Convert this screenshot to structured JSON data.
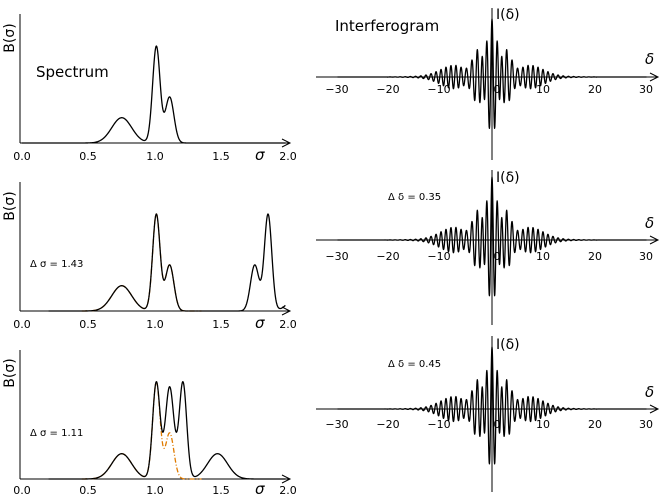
{
  "colors": {
    "curve": "#000000",
    "original_spectrum": "#e07b00"
  },
  "spectrum_panels": [
    {
      "ylabel": "B(σ)",
      "title": "Spectrum",
      "annotation": "",
      "xlabel": "σ",
      "ticks": [
        "0.0",
        "0.5",
        "1.0",
        "1.5",
        "2.0"
      ],
      "xlim": [
        0,
        2
      ],
      "sampling_interval": null
    },
    {
      "ylabel": "B(σ)",
      "title": "",
      "annotation": "Δ σ = 1.43",
      "xlabel": "σ",
      "ticks": [
        "0.0",
        "0.5",
        "1.0",
        "1.5",
        "2.0"
      ],
      "xlim": [
        0,
        2
      ],
      "sampling_interval": 1.43
    },
    {
      "ylabel": "B(σ)",
      "title": "",
      "annotation": "Δ σ = 1.11",
      "xlabel": "σ",
      "ticks": [
        "0.0",
        "0.5",
        "1.0",
        "1.5",
        "2.0"
      ],
      "xlim": [
        0,
        2
      ],
      "sampling_interval": 1.11
    }
  ],
  "interferogram_panels": [
    {
      "ylabel": "I(δ)",
      "title": "Interferogram",
      "annotation": "",
      "xlabel": "δ",
      "ticks": [
        "−30",
        "−20",
        "−10",
        "0",
        "10",
        "20",
        "30"
      ],
      "xlim": [
        -35,
        35
      ]
    },
    {
      "ylabel": "I(δ)",
      "title": "",
      "annotation": "Δ δ = 0.35",
      "xlabel": "δ",
      "ticks": [
        "−30",
        "−20",
        "−10",
        "0",
        "10",
        "20",
        "30"
      ],
      "xlim": [
        -35,
        35
      ]
    },
    {
      "ylabel": "I(δ)",
      "title": "",
      "annotation": "Δ δ = 0.45",
      "xlabel": "δ",
      "ticks": [
        "−30",
        "−20",
        "−10",
        "0",
        "10",
        "20",
        "30"
      ],
      "xlim": [
        -35,
        35
      ]
    }
  ],
  "spectrum_components": [
    {
      "center": 0.75,
      "amplitude": 0.22,
      "width": 0.075
    },
    {
      "center": 1.01,
      "amplitude": 0.84,
      "width": 0.028
    },
    {
      "center": 1.11,
      "amplitude": 0.4,
      "width": 0.032
    }
  ]
}
